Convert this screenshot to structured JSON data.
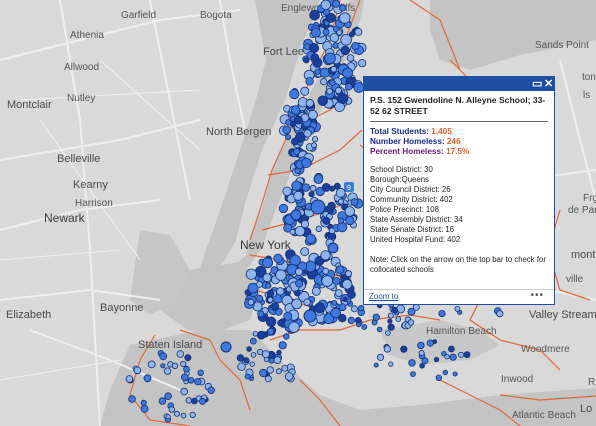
{
  "map": {
    "colors": {
      "land": "#d9d9d9",
      "water": "#c9c9c9",
      "roads": "#efefef",
      "boundary": "#e2683a",
      "dot": "#3f78df",
      "dot_light": "#8fb4ee",
      "dot_dark": "#1b3f9c"
    },
    "labels": {
      "garfield": "Garfield",
      "bogota": "Bogota",
      "englewood_cliffs": "Englewood Cliffs",
      "athenia": "Athenia",
      "allwood": "Allwood",
      "fort_lee": "Fort Lee",
      "sands_point": "Sands Point",
      "montclair": "Montclair",
      "nutley": "Nutley",
      "belleville": "Belleville",
      "north_bergen": "North Bergen",
      "kearny": "Kearny",
      "harrison": "Harrison",
      "newark": "Newark",
      "new_york": "New York",
      "bayonne": "Bayonne",
      "elizabeth": "Elizabeth",
      "staten_island": "Staten Island",
      "hamilton_beach": "Hamilton Beach",
      "woodmere": "Woodmere",
      "inwood": "Inwood",
      "valley_stream": "Valley Stream",
      "atlantic_beach": "Atlantic Beach",
      "lo": "Lo",
      "rockville": "R",
      "ton": "ton",
      "frg": "Frg",
      "de_park": "de Park",
      "mont": "mont",
      "ville": "ville",
      "ls": "ls"
    },
    "highway_shields": [
      "9",
      "9"
    ]
  },
  "popup": {
    "title": "P.S. 152 Gwendoline N. Alleyne School; 33-52 62 STREET",
    "stats": [
      {
        "label": "Total Students:",
        "value": "1,405"
      },
      {
        "label": "Number Homeless:",
        "value": "246"
      },
      {
        "label": "Percent Homeless:",
        "value": "17.5%"
      }
    ],
    "details": [
      "School District: 30",
      "Borough:Queens",
      "City Council District: 26",
      "Community District: 402",
      "Police Precinct: 108",
      "State Assembly District: 34",
      "State Senate District: 16",
      "United Hospital Fund: 402"
    ],
    "note": "Note: Click on the arrow on the top bar to check for collocated schools",
    "zoom_label": "Zoom to",
    "more_label": "•••",
    "maximize_icon": "maximize-icon",
    "close_icon": "close-icon"
  }
}
